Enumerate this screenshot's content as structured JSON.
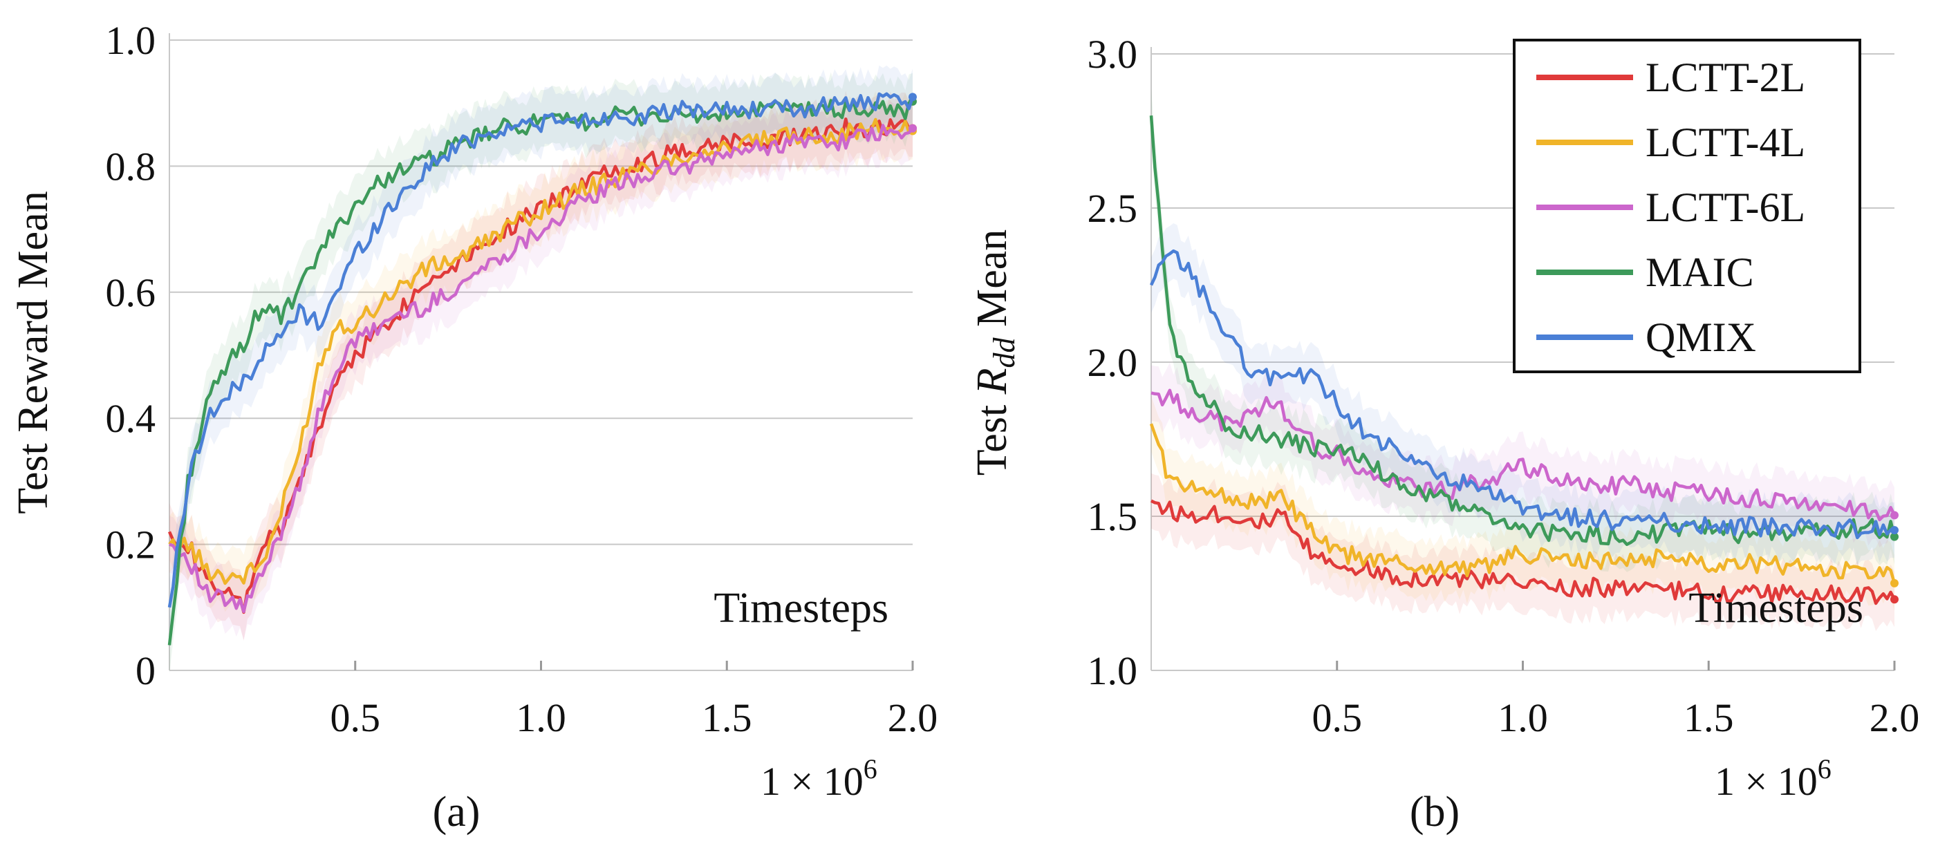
{
  "chart_data": [
    {
      "type": "line",
      "panel_label": "(a)",
      "xlabel": "Timesteps",
      "ylabel": "Test Reward Mean",
      "x_multiplier_label": "1 × 10",
      "x_multiplier_exp": "6",
      "xlim": [
        0,
        2.0
      ],
      "ylim": [
        0,
        1.0
      ],
      "xticks": [
        "0.5",
        "1.0",
        "1.5",
        "2.0"
      ],
      "yticks": [
        "0",
        "0.2",
        "0.4",
        "0.6",
        "0.8",
        "1.0"
      ],
      "grid": true,
      "x": [
        0,
        0.05,
        0.1,
        0.15,
        0.2,
        0.25,
        0.3,
        0.35,
        0.4,
        0.45,
        0.5,
        0.6,
        0.7,
        0.8,
        0.9,
        1.0,
        1.1,
        1.2,
        1.3,
        1.4,
        1.5,
        1.6,
        1.7,
        1.8,
        1.9,
        2.0
      ],
      "series": [
        {
          "name": "LCTT-2L",
          "color": "#e03a3a",
          "values": [
            0.22,
            0.2,
            0.14,
            0.12,
            0.1,
            0.2,
            0.22,
            0.3,
            0.38,
            0.46,
            0.5,
            0.56,
            0.62,
            0.66,
            0.7,
            0.73,
            0.77,
            0.8,
            0.81,
            0.83,
            0.84,
            0.84,
            0.85,
            0.86,
            0.86,
            0.87
          ]
        },
        {
          "name": "LCTT-4L",
          "color": "#f0b429",
          "values": [
            0.2,
            0.2,
            0.16,
            0.15,
            0.15,
            0.17,
            0.25,
            0.35,
            0.48,
            0.55,
            0.55,
            0.6,
            0.64,
            0.66,
            0.7,
            0.73,
            0.76,
            0.78,
            0.8,
            0.82,
            0.83,
            0.84,
            0.85,
            0.85,
            0.86,
            0.86
          ]
        },
        {
          "name": "LCTT-6L",
          "color": "#cc66cc",
          "values": [
            0.2,
            0.18,
            0.12,
            0.11,
            0.1,
            0.15,
            0.22,
            0.3,
            0.4,
            0.48,
            0.52,
            0.56,
            0.58,
            0.62,
            0.66,
            0.7,
            0.74,
            0.77,
            0.79,
            0.8,
            0.82,
            0.83,
            0.84,
            0.84,
            0.85,
            0.85
          ]
        },
        {
          "name": "MAIC",
          "color": "#3d9a5a",
          "values": [
            0.04,
            0.3,
            0.42,
            0.48,
            0.52,
            0.58,
            0.56,
            0.6,
            0.66,
            0.7,
            0.74,
            0.79,
            0.81,
            0.84,
            0.86,
            0.87,
            0.87,
            0.88,
            0.88,
            0.88,
            0.88,
            0.89,
            0.89,
            0.89,
            0.89,
            0.89
          ]
        },
        {
          "name": "QMIX",
          "color": "#4a7fd6",
          "values": [
            0.1,
            0.3,
            0.4,
            0.43,
            0.46,
            0.5,
            0.53,
            0.57,
            0.55,
            0.6,
            0.66,
            0.74,
            0.8,
            0.84,
            0.86,
            0.87,
            0.87,
            0.88,
            0.88,
            0.89,
            0.89,
            0.89,
            0.89,
            0.9,
            0.9,
            0.9
          ]
        }
      ]
    },
    {
      "type": "line",
      "panel_label": "(b)",
      "xlabel": "Timesteps",
      "ylabel_prefix": "Test ",
      "ylabel_var": "R",
      "ylabel_sub": "dd",
      "ylabel_suffix": " Mean",
      "x_multiplier_label": "1 × 10",
      "x_multiplier_exp": "6",
      "xlim": [
        0,
        2.0
      ],
      "ylim": [
        1.0,
        3.0
      ],
      "xticks": [
        "0.5",
        "1.0",
        "1.5",
        "2.0"
      ],
      "yticks": [
        "1.0",
        "1.5",
        "2.0",
        "2.5",
        "3.0"
      ],
      "grid": true,
      "legend": "top-right",
      "x": [
        0,
        0.05,
        0.1,
        0.15,
        0.2,
        0.25,
        0.3,
        0.35,
        0.4,
        0.45,
        0.5,
        0.6,
        0.7,
        0.8,
        0.9,
        1.0,
        1.1,
        1.2,
        1.3,
        1.4,
        1.5,
        1.6,
        1.7,
        1.8,
        1.9,
        2.0
      ],
      "series": [
        {
          "name": "LCTT-2L",
          "color": "#e03a3a",
          "values": [
            1.55,
            1.52,
            1.5,
            1.52,
            1.5,
            1.5,
            1.48,
            1.5,
            1.42,
            1.36,
            1.35,
            1.32,
            1.3,
            1.3,
            1.29,
            1.28,
            1.27,
            1.27,
            1.26,
            1.26,
            1.25,
            1.25,
            1.25,
            1.25,
            1.24,
            1.25
          ]
        },
        {
          "name": "LCTT-4L",
          "color": "#f0b429",
          "values": [
            1.8,
            1.62,
            1.58,
            1.6,
            1.56,
            1.55,
            1.55,
            1.56,
            1.5,
            1.42,
            1.38,
            1.36,
            1.34,
            1.33,
            1.34,
            1.38,
            1.36,
            1.35,
            1.36,
            1.37,
            1.35,
            1.35,
            1.34,
            1.33,
            1.32,
            1.31
          ]
        },
        {
          "name": "LCTT-6L",
          "color": "#cc66cc",
          "values": [
            1.9,
            1.88,
            1.85,
            1.82,
            1.8,
            1.82,
            1.86,
            1.85,
            1.78,
            1.72,
            1.7,
            1.62,
            1.6,
            1.58,
            1.62,
            1.66,
            1.62,
            1.6,
            1.6,
            1.58,
            1.58,
            1.56,
            1.55,
            1.54,
            1.52,
            1.51
          ]
        },
        {
          "name": "MAIC",
          "color": "#3d9a5a",
          "values": [
            2.8,
            2.1,
            1.95,
            1.88,
            1.8,
            1.78,
            1.76,
            1.75,
            1.73,
            1.72,
            1.72,
            1.66,
            1.58,
            1.55,
            1.5,
            1.46,
            1.44,
            1.44,
            1.43,
            1.45,
            1.46,
            1.44,
            1.45,
            1.45,
            1.46,
            1.46
          ]
        },
        {
          "name": "QMIX",
          "color": "#4a7fd6",
          "values": [
            2.25,
            2.35,
            2.3,
            2.2,
            2.1,
            2.0,
            1.95,
            1.96,
            1.96,
            1.94,
            1.86,
            1.75,
            1.68,
            1.62,
            1.58,
            1.52,
            1.5,
            1.49,
            1.48,
            1.48,
            1.47,
            1.47,
            1.46,
            1.46,
            1.46,
            1.46
          ]
        }
      ]
    }
  ]
}
